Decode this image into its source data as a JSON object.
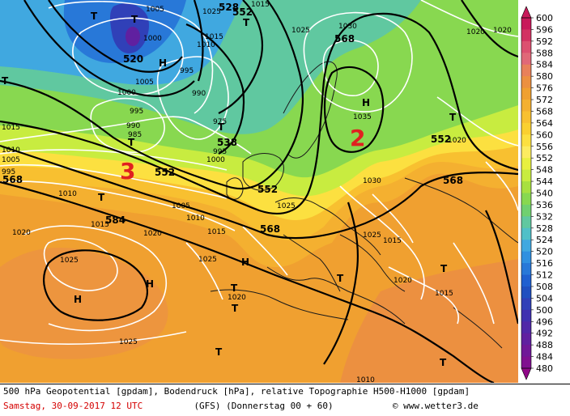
{
  "map": {
    "height_labels": [
      {
        "id": "h520",
        "text": "520"
      },
      {
        "id": "h528",
        "text": "528"
      },
      {
        "id": "h538",
        "text": "538"
      },
      {
        "id": "h552a",
        "text": "552"
      },
      {
        "id": "h552b",
        "text": "552"
      },
      {
        "id": "h552c",
        "text": "552"
      },
      {
        "id": "h552d",
        "text": "552"
      },
      {
        "id": "h568a",
        "text": "568"
      },
      {
        "id": "h568b",
        "text": "568"
      },
      {
        "id": "h568c",
        "text": "568"
      },
      {
        "id": "h568d",
        "text": "568"
      },
      {
        "id": "h584",
        "text": "584"
      }
    ],
    "pressure_labels": [
      {
        "id": "p1",
        "text": "1005"
      },
      {
        "id": "p2",
        "text": "1025"
      },
      {
        "id": "p3",
        "text": "1015"
      },
      {
        "id": "p4",
        "text": "1000"
      },
      {
        "id": "p5",
        "text": "1015"
      },
      {
        "id": "p6",
        "text": "1010"
      },
      {
        "id": "p7",
        "text": "1005"
      },
      {
        "id": "p8",
        "text": "995"
      },
      {
        "id": "p9",
        "text": "1000"
      },
      {
        "id": "p10",
        "text": "990"
      },
      {
        "id": "p11",
        "text": "995"
      },
      {
        "id": "p12",
        "text": "990"
      },
      {
        "id": "p13",
        "text": "985"
      },
      {
        "id": "p14",
        "text": "975"
      },
      {
        "id": "p15",
        "text": "995"
      },
      {
        "id": "p16",
        "text": "1000"
      },
      {
        "id": "p17",
        "text": "1015"
      },
      {
        "id": "p18",
        "text": "1010"
      },
      {
        "id": "p19",
        "text": "1005"
      },
      {
        "id": "p20",
        "text": "995"
      },
      {
        "id": "p21",
        "text": "1025"
      },
      {
        "id": "p22",
        "text": "1030"
      },
      {
        "id": "p23",
        "text": "1020"
      },
      {
        "id": "p24",
        "text": "1035"
      },
      {
        "id": "p25",
        "text": "1030"
      },
      {
        "id": "p26",
        "text": "1020"
      },
      {
        "id": "p27",
        "text": "1010"
      },
      {
        "id": "p28",
        "text": "1015"
      },
      {
        "id": "p29",
        "text": "1020"
      },
      {
        "id": "p30",
        "text": "1005"
      },
      {
        "id": "p31",
        "text": "1010"
      },
      {
        "id": "p32",
        "text": "1015"
      },
      {
        "id": "p33",
        "text": "1025"
      },
      {
        "id": "p34",
        "text": "1025"
      },
      {
        "id": "p35",
        "text": "1025"
      },
      {
        "id": "p36",
        "text": "1025"
      },
      {
        "id": "p37",
        "text": "1020"
      },
      {
        "id": "p38",
        "text": "1020"
      },
      {
        "id": "p39",
        "text": "1015"
      },
      {
        "id": "p40",
        "text": "1025"
      },
      {
        "id": "p41",
        "text": "1015"
      },
      {
        "id": "p42",
        "text": "1020"
      },
      {
        "id": "p43",
        "text": "1020"
      },
      {
        "id": "p44",
        "text": "1010"
      }
    ],
    "highs": [
      {
        "id": "H1",
        "text": "H"
      },
      {
        "id": "H2",
        "text": "H"
      },
      {
        "id": "H3",
        "text": "H"
      },
      {
        "id": "H4",
        "text": "H"
      },
      {
        "id": "H5",
        "text": "H"
      }
    ],
    "lows": [
      {
        "id": "T1",
        "text": "T"
      },
      {
        "id": "T2",
        "text": "T"
      },
      {
        "id": "T3",
        "text": "T"
      },
      {
        "id": "T4",
        "text": "T"
      },
      {
        "id": "T5",
        "text": "T"
      },
      {
        "id": "T6",
        "text": "T"
      },
      {
        "id": "T7",
        "text": "T"
      },
      {
        "id": "T8",
        "text": "T"
      },
      {
        "id": "T9",
        "text": "T"
      },
      {
        "id": "T10",
        "text": "T"
      },
      {
        "id": "T11",
        "text": "T"
      },
      {
        "id": "T12",
        "text": "T"
      },
      {
        "id": "T13",
        "text": "T"
      },
      {
        "id": "T14",
        "text": "T"
      }
    ],
    "annotations": [
      {
        "id": "ann2",
        "text": "2"
      },
      {
        "id": "ann3",
        "text": "3"
      }
    ]
  },
  "scale": {
    "values": [
      "600",
      "596",
      "592",
      "588",
      "584",
      "580",
      "576",
      "572",
      "568",
      "564",
      "560",
      "556",
      "552",
      "548",
      "544",
      "540",
      "536",
      "532",
      "528",
      "524",
      "520",
      "516",
      "512",
      "508",
      "504",
      "500",
      "496",
      "492",
      "488",
      "484",
      "480"
    ],
    "colors": [
      "#c8185a",
      "#d23262",
      "#dc5070",
      "#e06878",
      "#e8805a",
      "#ec9040",
      "#f0a030",
      "#f4b030",
      "#f8c030",
      "#fad030",
      "#fce040",
      "#fcec60",
      "#e8f040",
      "#c8ec40",
      "#a8e040",
      "#88d850",
      "#70d070",
      "#60c8a0",
      "#50c0c8",
      "#40a8e0",
      "#3090e0",
      "#2878d8",
      "#2060d0",
      "#2050c0",
      "#3040b8",
      "#4030b0",
      "#5028a8",
      "#6020a0",
      "#701898",
      "#801090",
      "#900888"
    ]
  },
  "footer": {
    "line1": "500 hPa Geopotential [gpdam], Bodendruck [hPa], relative Topographie H500-H1000 [gpdam]",
    "line2_date": "Samstag, 30-09-2017  12 UTC",
    "line2_model": "(GFS)  (Donnerstag 00 + 60)",
    "line2_copy": "© www.wetter3.de"
  }
}
